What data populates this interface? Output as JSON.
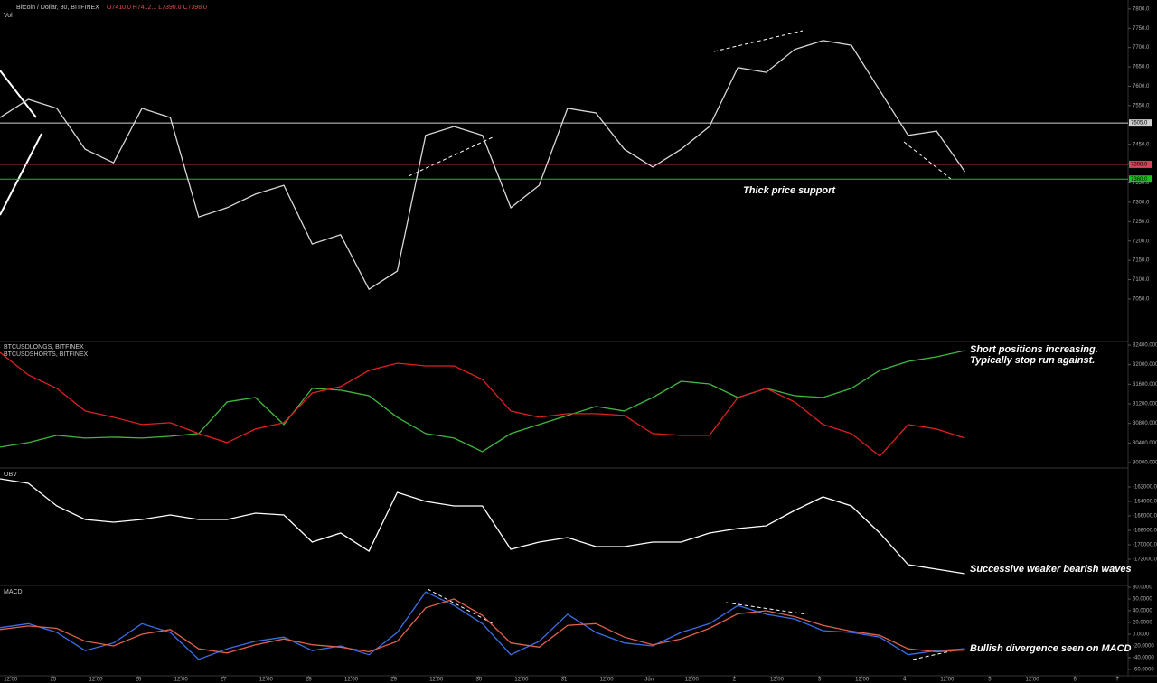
{
  "header": {
    "symbol": "Bitcoin / Dollar, 30, BITFINEX",
    "ohlc": "O7410.0 H7412.1 L7390.0 C7398.0",
    "volume_label": "Vol"
  },
  "chart_data": [
    {
      "type": "line",
      "panel": "price",
      "x": [
        0,
        8,
        16,
        24,
        32,
        40,
        48,
        56,
        64,
        72,
        80,
        88,
        96,
        104,
        112,
        120,
        128,
        136,
        144,
        152,
        160,
        168,
        176,
        184,
        192,
        200,
        208,
        216,
        224,
        232,
        240,
        248,
        256,
        264,
        272
      ],
      "series": [
        {
          "color": "#d8d8d8",
          "values": [
            7519,
            7566,
            7543,
            7437,
            7402,
            7543,
            7519,
            7262,
            7286,
            7321,
            7344,
            7192,
            7216,
            7075,
            7122,
            7473,
            7496,
            7473,
            7286,
            7344,
            7543,
            7531,
            7437,
            7391,
            7437,
            7496,
            7648,
            7636,
            7695,
            7718,
            7706,
            7589,
            7473,
            7484,
            7379
          ]
        }
      ],
      "xlim": [
        0,
        318
      ],
      "ylim": [
        6940,
        7823
      ],
      "yticks": [
        {
          "value": 7050,
          "label": "7050.0"
        },
        {
          "value": 7100,
          "label": "7100.0"
        },
        {
          "value": 7150,
          "label": "7150.0"
        },
        {
          "value": 7200,
          "label": "7200.0"
        },
        {
          "value": 7250,
          "label": "7250.0"
        },
        {
          "value": 7300,
          "label": "7300.0"
        },
        {
          "value": 7350,
          "label": "7350.0"
        },
        {
          "value": 7400,
          "label": "7400.0"
        },
        {
          "value": 7450,
          "label": "7450.0"
        },
        {
          "value": 7500,
          "label": "7500.0"
        },
        {
          "value": 7550,
          "label": "7550.0"
        },
        {
          "value": 7600,
          "label": "7600.0"
        },
        {
          "value": 7650,
          "label": "7650.0"
        },
        {
          "value": 7700,
          "label": "7700.0"
        },
        {
          "value": 7750,
          "label": "7750.0"
        },
        {
          "value": 7800,
          "label": "7800.0"
        }
      ],
      "levels": [
        {
          "value": 7505,
          "label": "7505.0",
          "color": "#cfcfcf"
        },
        {
          "value": 7398,
          "label": "7398.0",
          "color": "#d9405a"
        },
        {
          "value": 7360,
          "label": "7360.0",
          "color": "#19c219"
        }
      ],
      "annotation": [
        "Thick price support"
      ]
    },
    {
      "type": "line",
      "panel": "positions",
      "x": [
        0,
        8,
        16,
        24,
        32,
        40,
        48,
        56,
        64,
        72,
        80,
        88,
        96,
        104,
        112,
        120,
        128,
        136,
        144,
        152,
        160,
        168,
        176,
        184,
        192,
        200,
        208,
        216,
        224,
        232,
        240,
        248,
        256,
        264,
        272
      ],
      "series": [
        {
          "name": "BTCUSDLONGS, BITFINEX",
          "color": "#3fb83f",
          "values": [
            30315,
            30408,
            30555,
            30500,
            30518,
            30500,
            30537,
            30592,
            31238,
            31330,
            30777,
            31515,
            31478,
            31367,
            30924,
            30592,
            30500,
            30223,
            30592,
            30777,
            30961,
            31146,
            31054,
            31330,
            31662,
            31607,
            31330,
            31515,
            31367,
            31330,
            31515,
            31884,
            32068,
            32160,
            32290
          ]
        },
        {
          "name": "BTCUSDSHORTS, BITFINEX",
          "color": "#e02020",
          "values": [
            32253,
            31791,
            31515,
            31054,
            30924,
            30777,
            30814,
            30592,
            30408,
            30684,
            30814,
            31422,
            31552,
            31884,
            32031,
            31976,
            31976,
            31699,
            31054,
            30924,
            30998,
            30998,
            30961,
            30592,
            30555,
            30555,
            31330,
            31515,
            31238,
            30777,
            30592,
            30131,
            30777,
            30684,
            30500
          ]
        }
      ],
      "xlim": [
        0,
        318
      ],
      "ylim": [
        29889,
        32474
      ],
      "yticks": [
        {
          "value": 30000,
          "label": "30000.0000"
        },
        {
          "value": 30400,
          "label": "30400.0000"
        },
        {
          "value": 30800,
          "label": "30800.0000"
        },
        {
          "value": 31200,
          "label": "31200.0000"
        },
        {
          "value": 31600,
          "label": "31600.0000"
        },
        {
          "value": 32000,
          "label": "32000.0000"
        },
        {
          "value": 32400,
          "label": "32400.0000"
        }
      ],
      "annotation": [
        "Short positions increasing.",
        "Typically stop run against."
      ]
    },
    {
      "type": "line",
      "panel": "obv",
      "title": "OBV",
      "x": [
        0,
        8,
        16,
        24,
        32,
        40,
        48,
        56,
        64,
        72,
        80,
        88,
        96,
        104,
        112,
        120,
        128,
        136,
        144,
        152,
        160,
        168,
        176,
        184,
        192,
        200,
        208,
        216,
        224,
        232,
        240,
        248,
        256,
        264,
        272
      ],
      "series": [
        {
          "color": "#ffffff",
          "values": [
            -160875,
            -161500,
            -164625,
            -166500,
            -166875,
            -166500,
            -165875,
            -166500,
            -166500,
            -165625,
            -165875,
            -169625,
            -168375,
            -170875,
            -162750,
            -164000,
            -164625,
            -164625,
            -170625,
            -169625,
            -169000,
            -170250,
            -170250,
            -169625,
            -169625,
            -168375,
            -167750,
            -167375,
            -165250,
            -163375,
            -164625,
            -168375,
            -172750,
            -173375,
            -174000
          ]
        }
      ],
      "xlim": [
        0,
        318
      ],
      "ylim": [
        -175625,
        -159375
      ],
      "yticks": [
        {
          "value": -172000,
          "label": "-172000.0000"
        },
        {
          "value": -170000,
          "label": "-170000.0000"
        },
        {
          "value": -168000,
          "label": "-168000.0000"
        },
        {
          "value": -166000,
          "label": "-166000.0000"
        },
        {
          "value": -164000,
          "label": "-164000.0000"
        },
        {
          "value": -162000,
          "label": "-162000.0000"
        }
      ],
      "annotation": [
        "Successive weaker bearish waves"
      ]
    },
    {
      "type": "line",
      "panel": "macd",
      "title": "MACD",
      "x": [
        0,
        8,
        16,
        24,
        32,
        40,
        48,
        56,
        64,
        72,
        80,
        88,
        96,
        104,
        112,
        120,
        128,
        136,
        144,
        152,
        160,
        168,
        176,
        184,
        192,
        200,
        208,
        216,
        224,
        232,
        240,
        248,
        256,
        264,
        272
      ],
      "series": [
        {
          "color": "#3a6ee8",
          "values": [
            11,
            18,
            3,
            -28,
            -15,
            18,
            3,
            -43,
            -25,
            -12,
            -5,
            -28,
            -20,
            -35,
            3,
            72,
            49,
            18,
            -35,
            -12,
            34,
            3,
            -15,
            -20,
            3,
            18,
            49,
            34,
            26,
            6,
            3,
            -5,
            -35,
            -28,
            -25
          ]
        },
        {
          "color": "#e0604a",
          "values": [
            8,
            14,
            10,
            -12,
            -20,
            0,
            8,
            -25,
            -32,
            -18,
            -8,
            -18,
            -22,
            -30,
            -12,
            45,
            60,
            32,
            -15,
            -22,
            15,
            18,
            -5,
            -18,
            -8,
            10,
            35,
            40,
            30,
            15,
            5,
            -2,
            -25,
            -30,
            -27
          ]
        }
      ],
      "xlim": [
        0,
        318
      ],
      "ylim": [
        -70.8,
        83.1
      ],
      "yticks": [
        {
          "value": -60,
          "label": "-60.0000"
        },
        {
          "value": -40,
          "label": "-40.0000"
        },
        {
          "value": -20,
          "label": "-20.0000"
        },
        {
          "value": 0,
          "label": "0.0000"
        },
        {
          "value": 20,
          "label": "20.0000"
        },
        {
          "value": 40,
          "label": "40.0000"
        },
        {
          "value": 60,
          "label": "60.0000"
        },
        {
          "value": 80,
          "label": "80.0000"
        }
      ],
      "xticks": [
        {
          "value": 3,
          "label": "12:00"
        },
        {
          "value": 15,
          "label": "25"
        },
        {
          "value": 27,
          "label": "12:00"
        },
        {
          "value": 39,
          "label": "26"
        },
        {
          "value": 51,
          "label": "12:00"
        },
        {
          "value": 63,
          "label": "27"
        },
        {
          "value": 75,
          "label": "12:00"
        },
        {
          "value": 87,
          "label": "28"
        },
        {
          "value": 99,
          "label": "12:00"
        },
        {
          "value": 111,
          "label": "29"
        },
        {
          "value": 123,
          "label": "12:00"
        },
        {
          "value": 135,
          "label": "30"
        },
        {
          "value": 147,
          "label": "12:00"
        },
        {
          "value": 159,
          "label": "31"
        },
        {
          "value": 171,
          "label": "12:00"
        },
        {
          "value": 183,
          "label": "Jun"
        },
        {
          "value": 195,
          "label": "12:00"
        },
        {
          "value": 207,
          "label": "2"
        },
        {
          "value": 219,
          "label": "12:00"
        },
        {
          "value": 231,
          "label": "3"
        },
        {
          "value": 243,
          "label": "12:00"
        },
        {
          "value": 255,
          "label": "4"
        },
        {
          "value": 267,
          "label": "12:00"
        },
        {
          "value": 279,
          "label": "5"
        },
        {
          "value": 291,
          "label": "12:00"
        },
        {
          "value": 303,
          "label": "6"
        },
        {
          "value": 315,
          "label": "7"
        }
      ],
      "annotation": [
        "Bullish divergence seen on MACD"
      ]
    }
  ]
}
